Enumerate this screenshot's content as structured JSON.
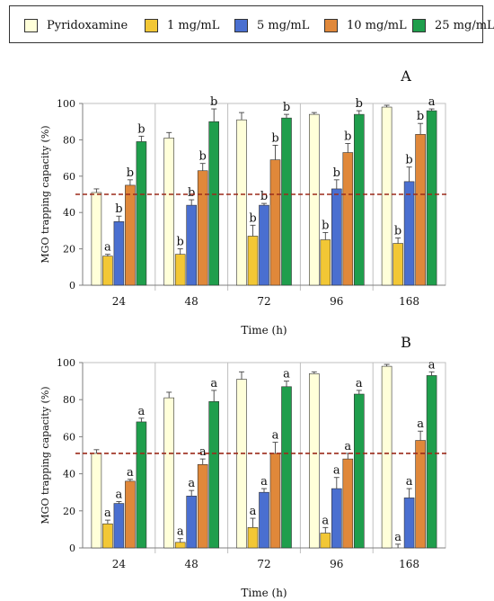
{
  "legend": [
    {
      "label": "Pyridoxamine",
      "color": "#ffffd9"
    },
    {
      "label": "1 mg/mL",
      "color": "#f2c735"
    },
    {
      "label": "5 mg/mL",
      "color": "#4a6fd0"
    },
    {
      "label": "10 mg/mL",
      "color": "#e0883a"
    },
    {
      "label": "25 mg/mL",
      "color": "#1f9e4c"
    }
  ],
  "chart_data": [
    {
      "type": "bar",
      "panel_label": "A",
      "xlabel": "Time (h)",
      "ylabel": "MGO trapping capacity (%)",
      "ylim": [
        0,
        100
      ],
      "yticks": [
        0,
        20,
        40,
        60,
        80,
        100
      ],
      "categories": [
        "24",
        "48",
        "72",
        "96",
        "168"
      ],
      "reference_line": 50,
      "series": [
        {
          "name": "Pyridoxamine",
          "values": [
            51,
            81,
            91,
            94,
            98
          ],
          "errors": [
            2,
            3,
            4,
            1,
            1
          ],
          "labels": [
            "",
            "",
            "",
            "",
            ""
          ]
        },
        {
          "name": "1 mg/mL",
          "values": [
            16,
            17,
            27,
            25,
            23
          ],
          "errors": [
            1,
            3,
            6,
            4,
            3
          ],
          "labels": [
            "a",
            "b",
            "b",
            "b",
            "b"
          ]
        },
        {
          "name": "5 mg/mL",
          "values": [
            35,
            44,
            44,
            53,
            57
          ],
          "errors": [
            3,
            3,
            1,
            5,
            8
          ],
          "labels": [
            "b",
            "b",
            "b",
            "b",
            "b"
          ]
        },
        {
          "name": "10 mg/mL",
          "values": [
            55,
            63,
            69,
            73,
            83
          ],
          "errors": [
            3,
            4,
            8,
            5,
            6
          ],
          "labels": [
            "b",
            "b",
            "b",
            "b",
            "b"
          ]
        },
        {
          "name": "25 mg/mL",
          "values": [
            79,
            90,
            92,
            94,
            96
          ],
          "errors": [
            3,
            7,
            2,
            2,
            1
          ],
          "labels": [
            "b",
            "b",
            "b",
            "b",
            "a"
          ]
        }
      ]
    },
    {
      "type": "bar",
      "panel_label": "B",
      "xlabel": "Time (h)",
      "ylabel": "MGO trapping capacity (%)",
      "ylim": [
        0,
        100
      ],
      "yticks": [
        0,
        20,
        40,
        60,
        80,
        100
      ],
      "categories": [
        "24",
        "48",
        "72",
        "96",
        "168"
      ],
      "reference_line": 51,
      "series": [
        {
          "name": "Pyridoxamine",
          "values": [
            51,
            81,
            91,
            94,
            98
          ],
          "errors": [
            2,
            3,
            4,
            1,
            1
          ],
          "labels": [
            "",
            "",
            "",
            "",
            ""
          ]
        },
        {
          "name": "1 mg/mL",
          "values": [
            13,
            3,
            11,
            8,
            0
          ],
          "errors": [
            2,
            2,
            5,
            3,
            2
          ],
          "labels": [
            "a",
            "a",
            "a",
            "a",
            "a"
          ]
        },
        {
          "name": "5 mg/mL",
          "values": [
            24,
            28,
            30,
            32,
            27
          ],
          "errors": [
            1,
            3,
            2,
            6,
            5
          ],
          "labels": [
            "a",
            "a",
            "a",
            "a",
            "a"
          ]
        },
        {
          "name": "10 mg/mL",
          "values": [
            36,
            45,
            51,
            48,
            58
          ],
          "errors": [
            1,
            3,
            6,
            3,
            5
          ],
          "labels": [
            "a",
            "a",
            "a",
            "a",
            "a"
          ]
        },
        {
          "name": "25 mg/mL",
          "values": [
            68,
            79,
            87,
            83,
            93
          ],
          "errors": [
            2,
            6,
            3,
            2,
            2
          ],
          "labels": [
            "a",
            "a",
            "a",
            "a",
            "a"
          ]
        }
      ]
    }
  ]
}
